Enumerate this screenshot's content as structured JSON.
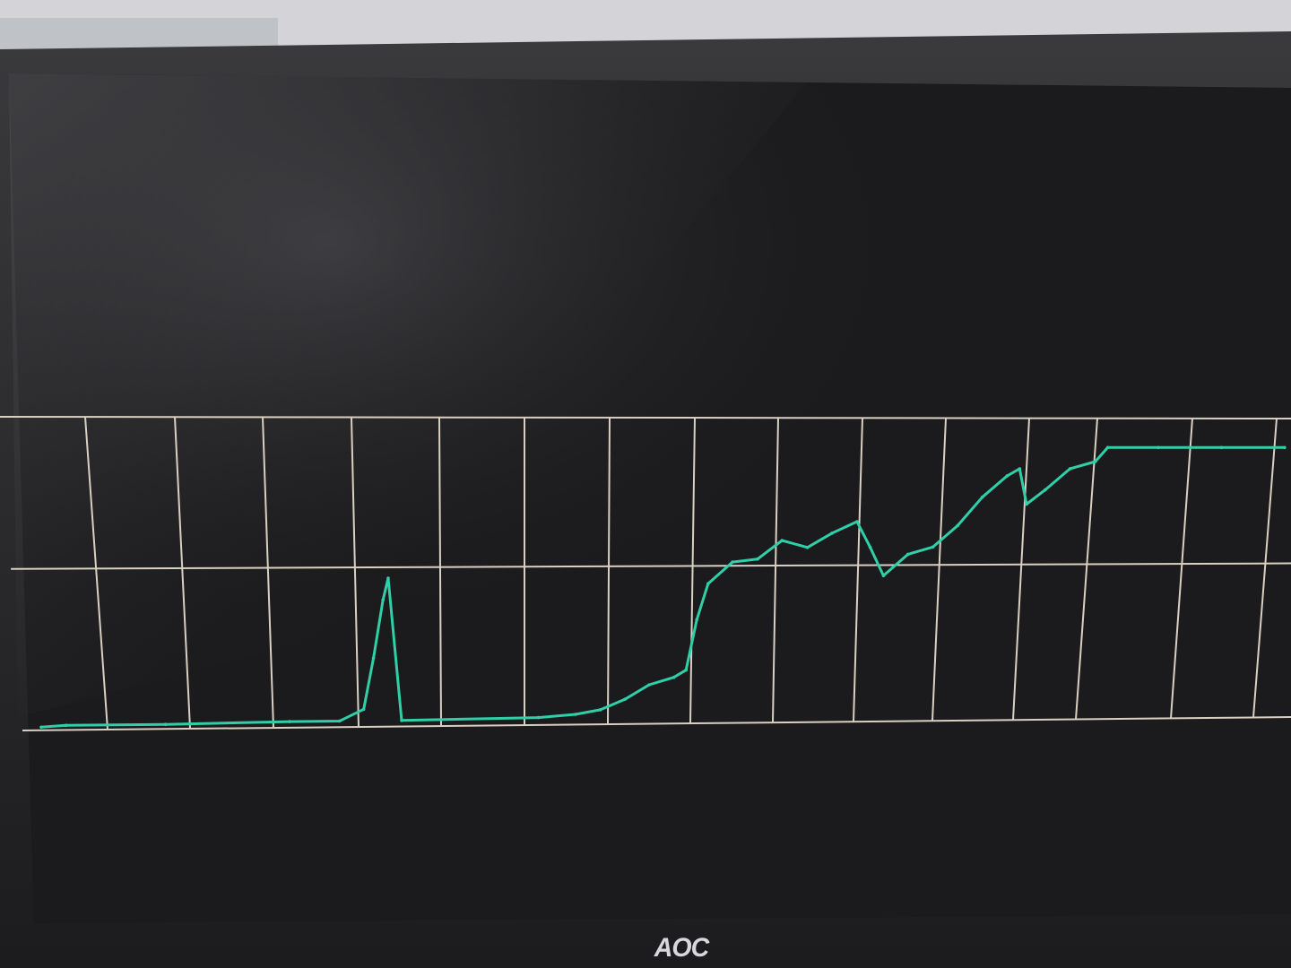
{
  "monitor": {
    "brand": "AOC"
  },
  "plot": {
    "trace_color": "#2fcfa8",
    "grid_color": "#d9cfc2",
    "background_color": "#1b1b1d"
  },
  "chart_data": {
    "type": "line",
    "title": "",
    "xlabel": "",
    "ylabel": "",
    "grid": true,
    "xlim": [
      0,
      1
    ],
    "ylim": [
      0,
      2
    ],
    "series": [
      {
        "values": [
          [
            0.0,
            0.0
          ],
          [
            0.02,
            0.01
          ],
          [
            0.1,
            0.01
          ],
          [
            0.2,
            0.02
          ],
          [
            0.24,
            0.02
          ],
          [
            0.26,
            0.1
          ],
          [
            0.27,
            0.45
          ],
          [
            0.28,
            0.85
          ],
          [
            0.285,
            1.0
          ],
          [
            0.29,
            0.02
          ],
          [
            0.4,
            0.03
          ],
          [
            0.43,
            0.05
          ],
          [
            0.45,
            0.08
          ],
          [
            0.47,
            0.15
          ],
          [
            0.49,
            0.25
          ],
          [
            0.51,
            0.3
          ],
          [
            0.52,
            0.35
          ],
          [
            0.53,
            0.7
          ],
          [
            0.54,
            0.95
          ],
          [
            0.56,
            1.1
          ],
          [
            0.58,
            1.12
          ],
          [
            0.6,
            1.25
          ],
          [
            0.62,
            1.2
          ],
          [
            0.64,
            1.3
          ],
          [
            0.66,
            1.38
          ],
          [
            0.67,
            1.2
          ],
          [
            0.68,
            1.0
          ],
          [
            0.7,
            1.15
          ],
          [
            0.72,
            1.2
          ],
          [
            0.74,
            1.35
          ],
          [
            0.76,
            1.55
          ],
          [
            0.78,
            1.7
          ],
          [
            0.79,
            1.75
          ],
          [
            0.795,
            1.5
          ],
          [
            0.81,
            1.6
          ],
          [
            0.83,
            1.75
          ],
          [
            0.85,
            1.8
          ],
          [
            0.86,
            1.9
          ],
          [
            0.9,
            1.9
          ],
          [
            0.95,
            1.9
          ],
          [
            1.0,
            1.9
          ]
        ]
      }
    ]
  }
}
